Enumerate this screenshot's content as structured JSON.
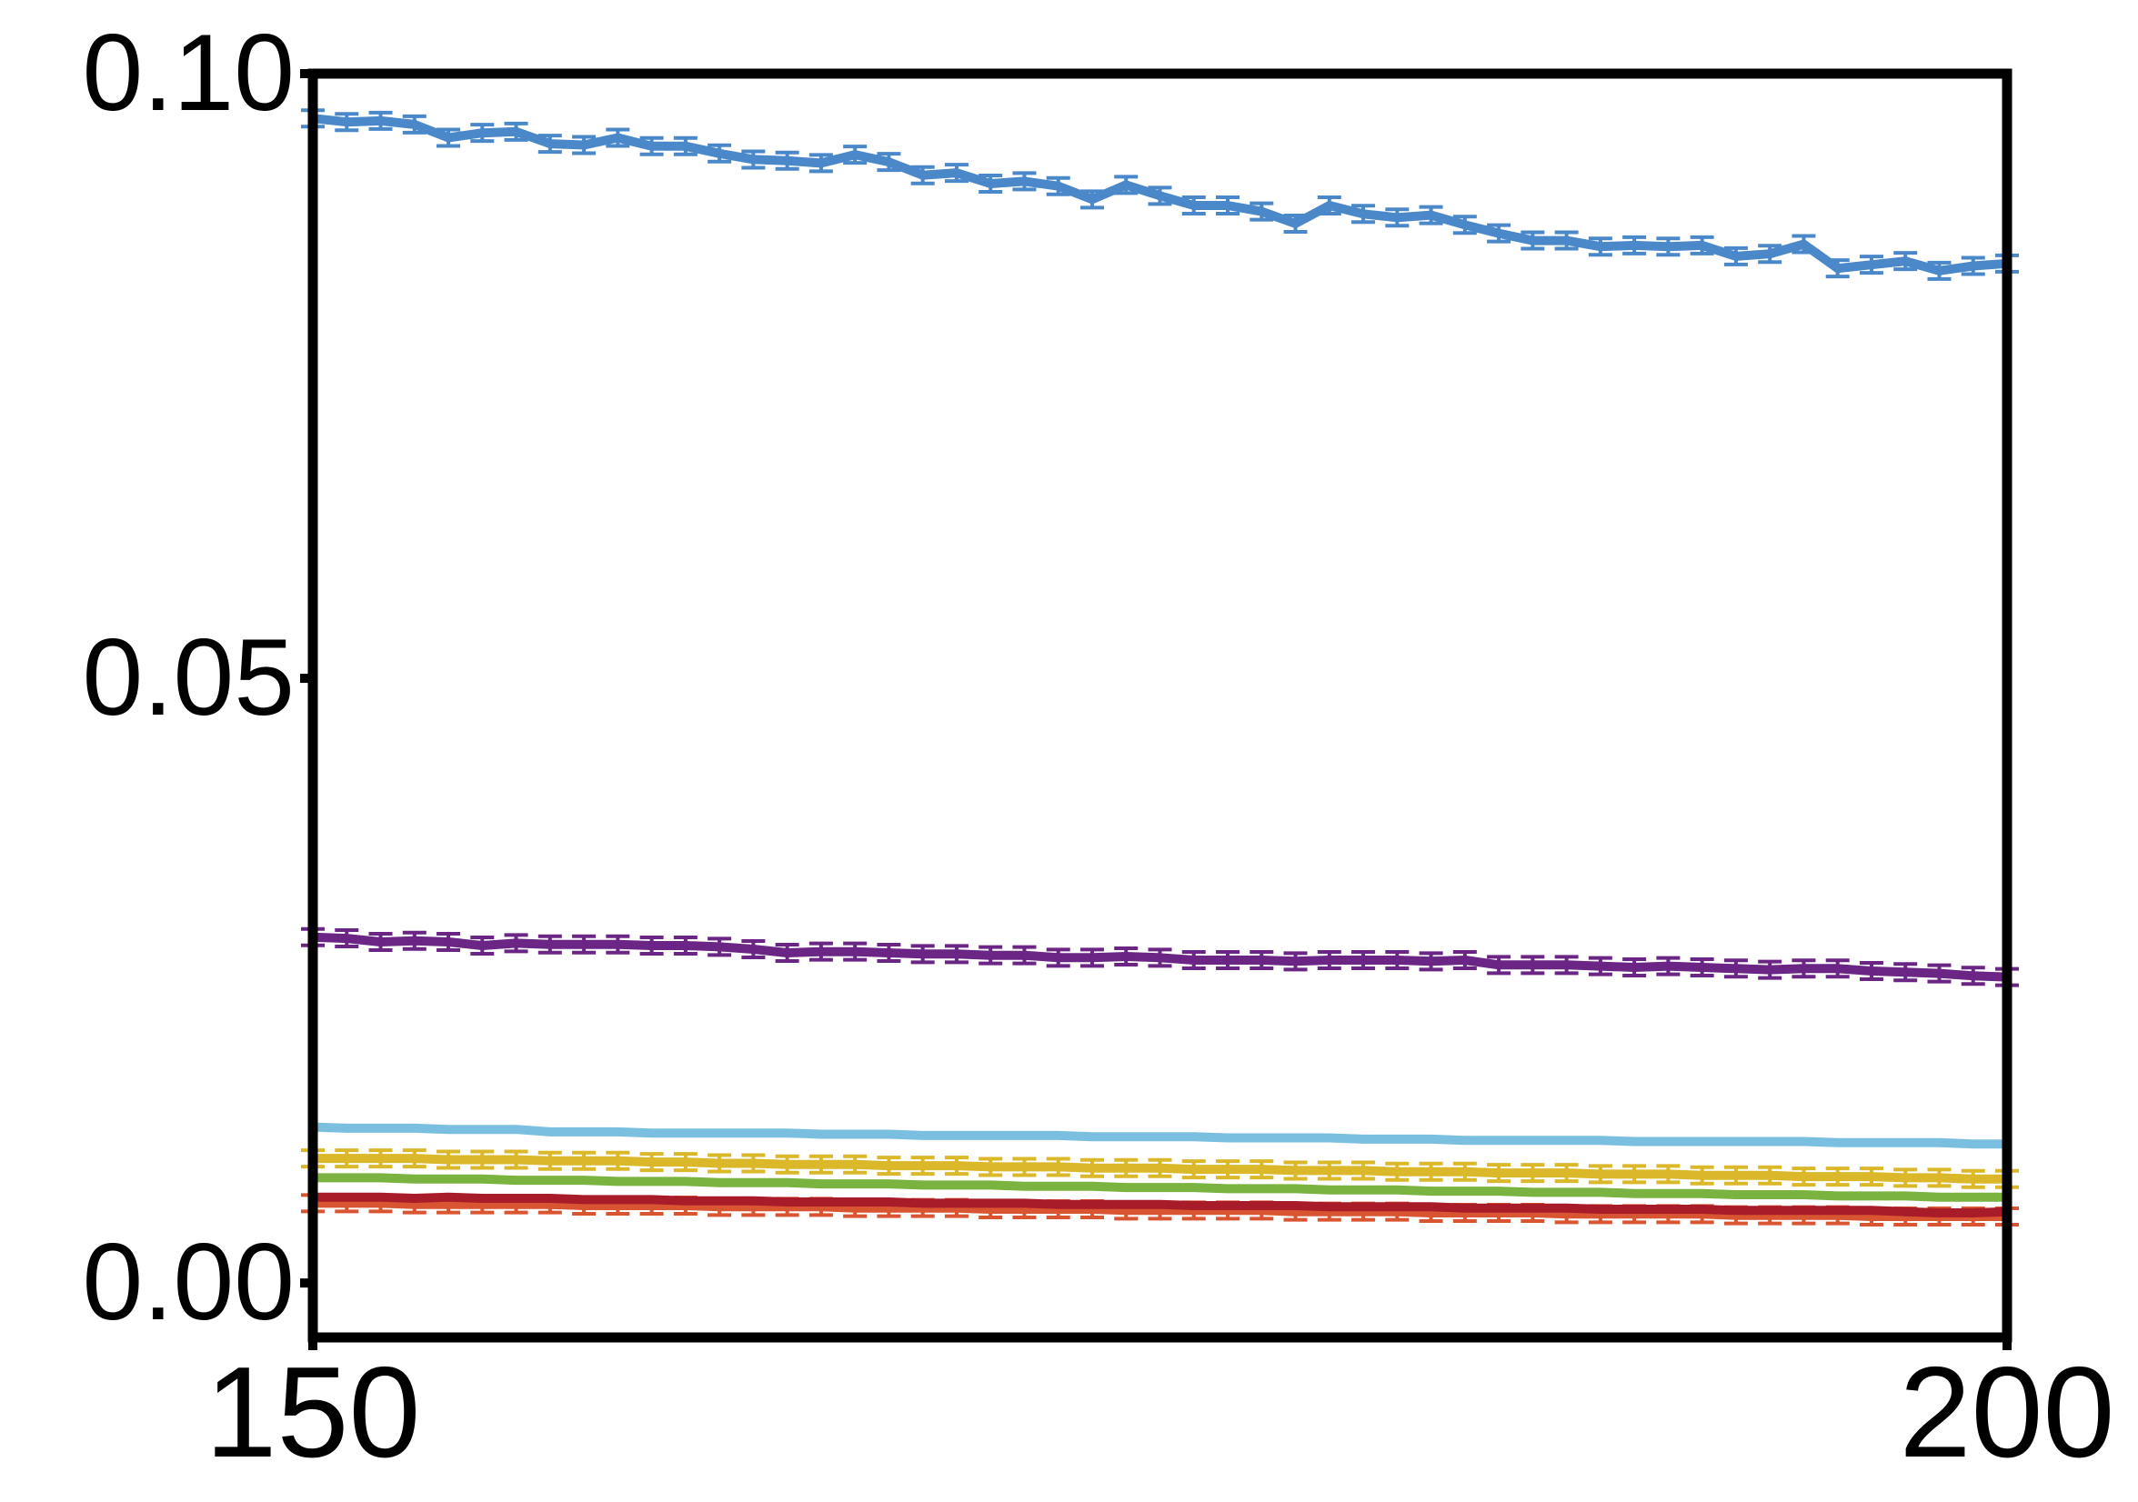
{
  "chart_data": {
    "type": "line",
    "title": "",
    "xlabel": "",
    "ylabel": "",
    "xlim": [
      150,
      200
    ],
    "ylim": [
      -0.0045,
      0.1
    ],
    "x_ticks": [
      150,
      200
    ],
    "x_tick_labels": [
      "150",
      "200"
    ],
    "y_ticks": [
      0.0,
      0.05,
      0.1
    ],
    "y_tick_labels": [
      "0.00",
      "0.05",
      "0.10"
    ],
    "grid": false,
    "legend": "none",
    "x": [
      150,
      151,
      152,
      153,
      154,
      155,
      156,
      157,
      158,
      159,
      160,
      161,
      162,
      163,
      164,
      165,
      166,
      167,
      168,
      169,
      170,
      171,
      172,
      173,
      174,
      175,
      176,
      177,
      178,
      179,
      180,
      181,
      182,
      183,
      184,
      185,
      186,
      187,
      188,
      189,
      190,
      191,
      192,
      193,
      194,
      195,
      196,
      197,
      198,
      199,
      200
    ],
    "series": [
      {
        "color": "#4a88ca",
        "error_bars": true,
        "values": [
          0.0963,
          0.096,
          0.0961,
          0.0958,
          0.0947,
          0.0951,
          0.0952,
          0.0942,
          0.0941,
          0.0947,
          0.094,
          0.094,
          0.0934,
          0.0929,
          0.0928,
          0.0926,
          0.0933,
          0.0927,
          0.0916,
          0.0918,
          0.0909,
          0.0911,
          0.0907,
          0.0896,
          0.0908,
          0.0899,
          0.0891,
          0.0891,
          0.0886,
          0.0876,
          0.0891,
          0.0884,
          0.0881,
          0.0883,
          0.0875,
          0.0868,
          0.0862,
          0.0862,
          0.0857,
          0.0858,
          0.0857,
          0.0858,
          0.0849,
          0.0851,
          0.0859,
          0.0839,
          0.0842,
          0.0845,
          0.0837,
          0.0841,
          0.0843
        ]
      },
      {
        "color": "#6b2585",
        "error_bars": true,
        "values": [
          0.0286,
          0.0285,
          0.0282,
          0.0283,
          0.0282,
          0.0279,
          0.0281,
          0.028,
          0.028,
          0.028,
          0.0279,
          0.0279,
          0.0278,
          0.0276,
          0.0273,
          0.0274,
          0.0274,
          0.0273,
          0.0272,
          0.0272,
          0.0271,
          0.0271,
          0.0269,
          0.0269,
          0.027,
          0.0269,
          0.0267,
          0.0267,
          0.0267,
          0.0266,
          0.0267,
          0.0267,
          0.0267,
          0.0266,
          0.0267,
          0.0263,
          0.0263,
          0.0263,
          0.0262,
          0.0261,
          0.0262,
          0.0261,
          0.026,
          0.0259,
          0.026,
          0.026,
          0.0258,
          0.0257,
          0.0256,
          0.0254,
          0.0253
        ]
      },
      {
        "color": "#7bbfe0",
        "error_bars": false,
        "values": [
          0.0129,
          0.0128,
          0.0128,
          0.0128,
          0.0127,
          0.0127,
          0.0127,
          0.0125,
          0.0125,
          0.0125,
          0.0124,
          0.0124,
          0.0124,
          0.0124,
          0.0124,
          0.0123,
          0.0123,
          0.0123,
          0.0122,
          0.0122,
          0.0122,
          0.0122,
          0.0122,
          0.0121,
          0.0121,
          0.0121,
          0.0121,
          0.012,
          0.012,
          0.012,
          0.012,
          0.0119,
          0.0119,
          0.0119,
          0.0118,
          0.0118,
          0.0118,
          0.0118,
          0.0118,
          0.0117,
          0.0117,
          0.0117,
          0.0117,
          0.0117,
          0.0117,
          0.0116,
          0.0116,
          0.0116,
          0.0116,
          0.0115,
          0.0115
        ]
      },
      {
        "color": "#dbb72a",
        "error_bars": true,
        "values": [
          0.0103,
          0.0103,
          0.0103,
          0.0103,
          0.0102,
          0.0102,
          0.0102,
          0.0101,
          0.0101,
          0.0101,
          0.01,
          0.01,
          0.0099,
          0.0099,
          0.0098,
          0.0098,
          0.0098,
          0.0097,
          0.0097,
          0.0097,
          0.0096,
          0.0096,
          0.0096,
          0.0095,
          0.0095,
          0.0095,
          0.0094,
          0.0094,
          0.0094,
          0.0093,
          0.0093,
          0.0093,
          0.0092,
          0.0092,
          0.0092,
          0.0091,
          0.0091,
          0.0091,
          0.009,
          0.009,
          0.009,
          0.0089,
          0.0089,
          0.0089,
          0.0088,
          0.0088,
          0.0088,
          0.0087,
          0.0087,
          0.0086,
          0.0086
        ]
      },
      {
        "color": "#7ab340",
        "error_bars": false,
        "values": [
          0.0087,
          0.0087,
          0.0087,
          0.0086,
          0.0086,
          0.0086,
          0.0085,
          0.0085,
          0.0085,
          0.0084,
          0.0084,
          0.0084,
          0.0083,
          0.0083,
          0.0083,
          0.0082,
          0.0082,
          0.0082,
          0.0081,
          0.0081,
          0.0081,
          0.008,
          0.008,
          0.008,
          0.0079,
          0.0079,
          0.0079,
          0.0078,
          0.0078,
          0.0078,
          0.0077,
          0.0077,
          0.0077,
          0.0076,
          0.0076,
          0.0076,
          0.0075,
          0.0075,
          0.0075,
          0.0074,
          0.0074,
          0.0074,
          0.0073,
          0.0073,
          0.0073,
          0.0072,
          0.0072,
          0.0072,
          0.0071,
          0.0071,
          0.0071
        ]
      },
      {
        "color": "#d95430",
        "error_bars": true,
        "values": [
          0.0066,
          0.0066,
          0.0066,
          0.0065,
          0.0065,
          0.0065,
          0.0065,
          0.0065,
          0.0064,
          0.0064,
          0.0064,
          0.0064,
          0.0063,
          0.0063,
          0.0063,
          0.0063,
          0.0062,
          0.0062,
          0.0062,
          0.0062,
          0.0061,
          0.0061,
          0.0061,
          0.0061,
          0.006,
          0.006,
          0.006,
          0.006,
          0.006,
          0.0059,
          0.0059,
          0.0059,
          0.0059,
          0.0058,
          0.0058,
          0.0058,
          0.0058,
          0.0057,
          0.0057,
          0.0057,
          0.0057,
          0.0057,
          0.0056,
          0.0056,
          0.0056,
          0.0056,
          0.0055,
          0.0055,
          0.0055,
          0.0055,
          0.0055
        ]
      },
      {
        "color": "#a81c2a",
        "error_bars": false,
        "values": [
          0.0071,
          0.0071,
          0.0071,
          0.007,
          0.0071,
          0.007,
          0.007,
          0.007,
          0.0069,
          0.0069,
          0.0069,
          0.0068,
          0.0068,
          0.0068,
          0.0067,
          0.0067,
          0.0067,
          0.0067,
          0.0066,
          0.0066,
          0.0066,
          0.0066,
          0.0065,
          0.0065,
          0.0065,
          0.0065,
          0.0064,
          0.0064,
          0.0064,
          0.0064,
          0.0063,
          0.0063,
          0.0063,
          0.0063,
          0.0062,
          0.0062,
          0.0062,
          0.0062,
          0.0061,
          0.0061,
          0.0061,
          0.0061,
          0.006,
          0.006,
          0.006,
          0.006,
          0.006,
          0.0059,
          0.0058,
          0.0058,
          0.0059
        ]
      }
    ]
  }
}
